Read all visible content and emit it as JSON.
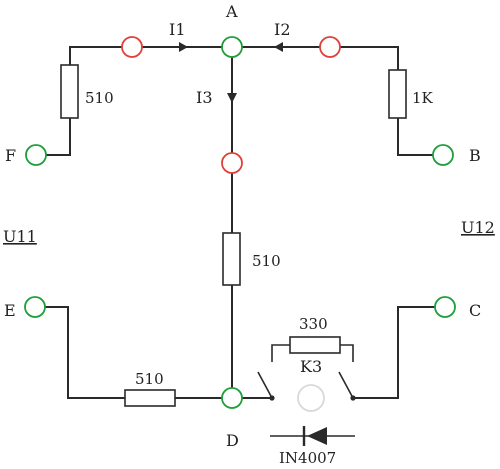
{
  "nodes": {
    "A": "A",
    "B": "B",
    "C": "C",
    "D": "D",
    "E": "E",
    "F": "F"
  },
  "currents": {
    "I1": "I1",
    "I2": "I2",
    "I3": "I3"
  },
  "resistors": {
    "left_top": "510",
    "right_top": "1K",
    "center": "510",
    "bottom_left": "510",
    "switch_bridge": "330"
  },
  "switch_label": "K3",
  "diode_label": "IN4007",
  "sources": {
    "left": "U11",
    "right": "U12"
  },
  "colors": {
    "terminal": "#1e9e3a",
    "measure_point": "#e0403a",
    "wire": "#2a2a2a"
  }
}
